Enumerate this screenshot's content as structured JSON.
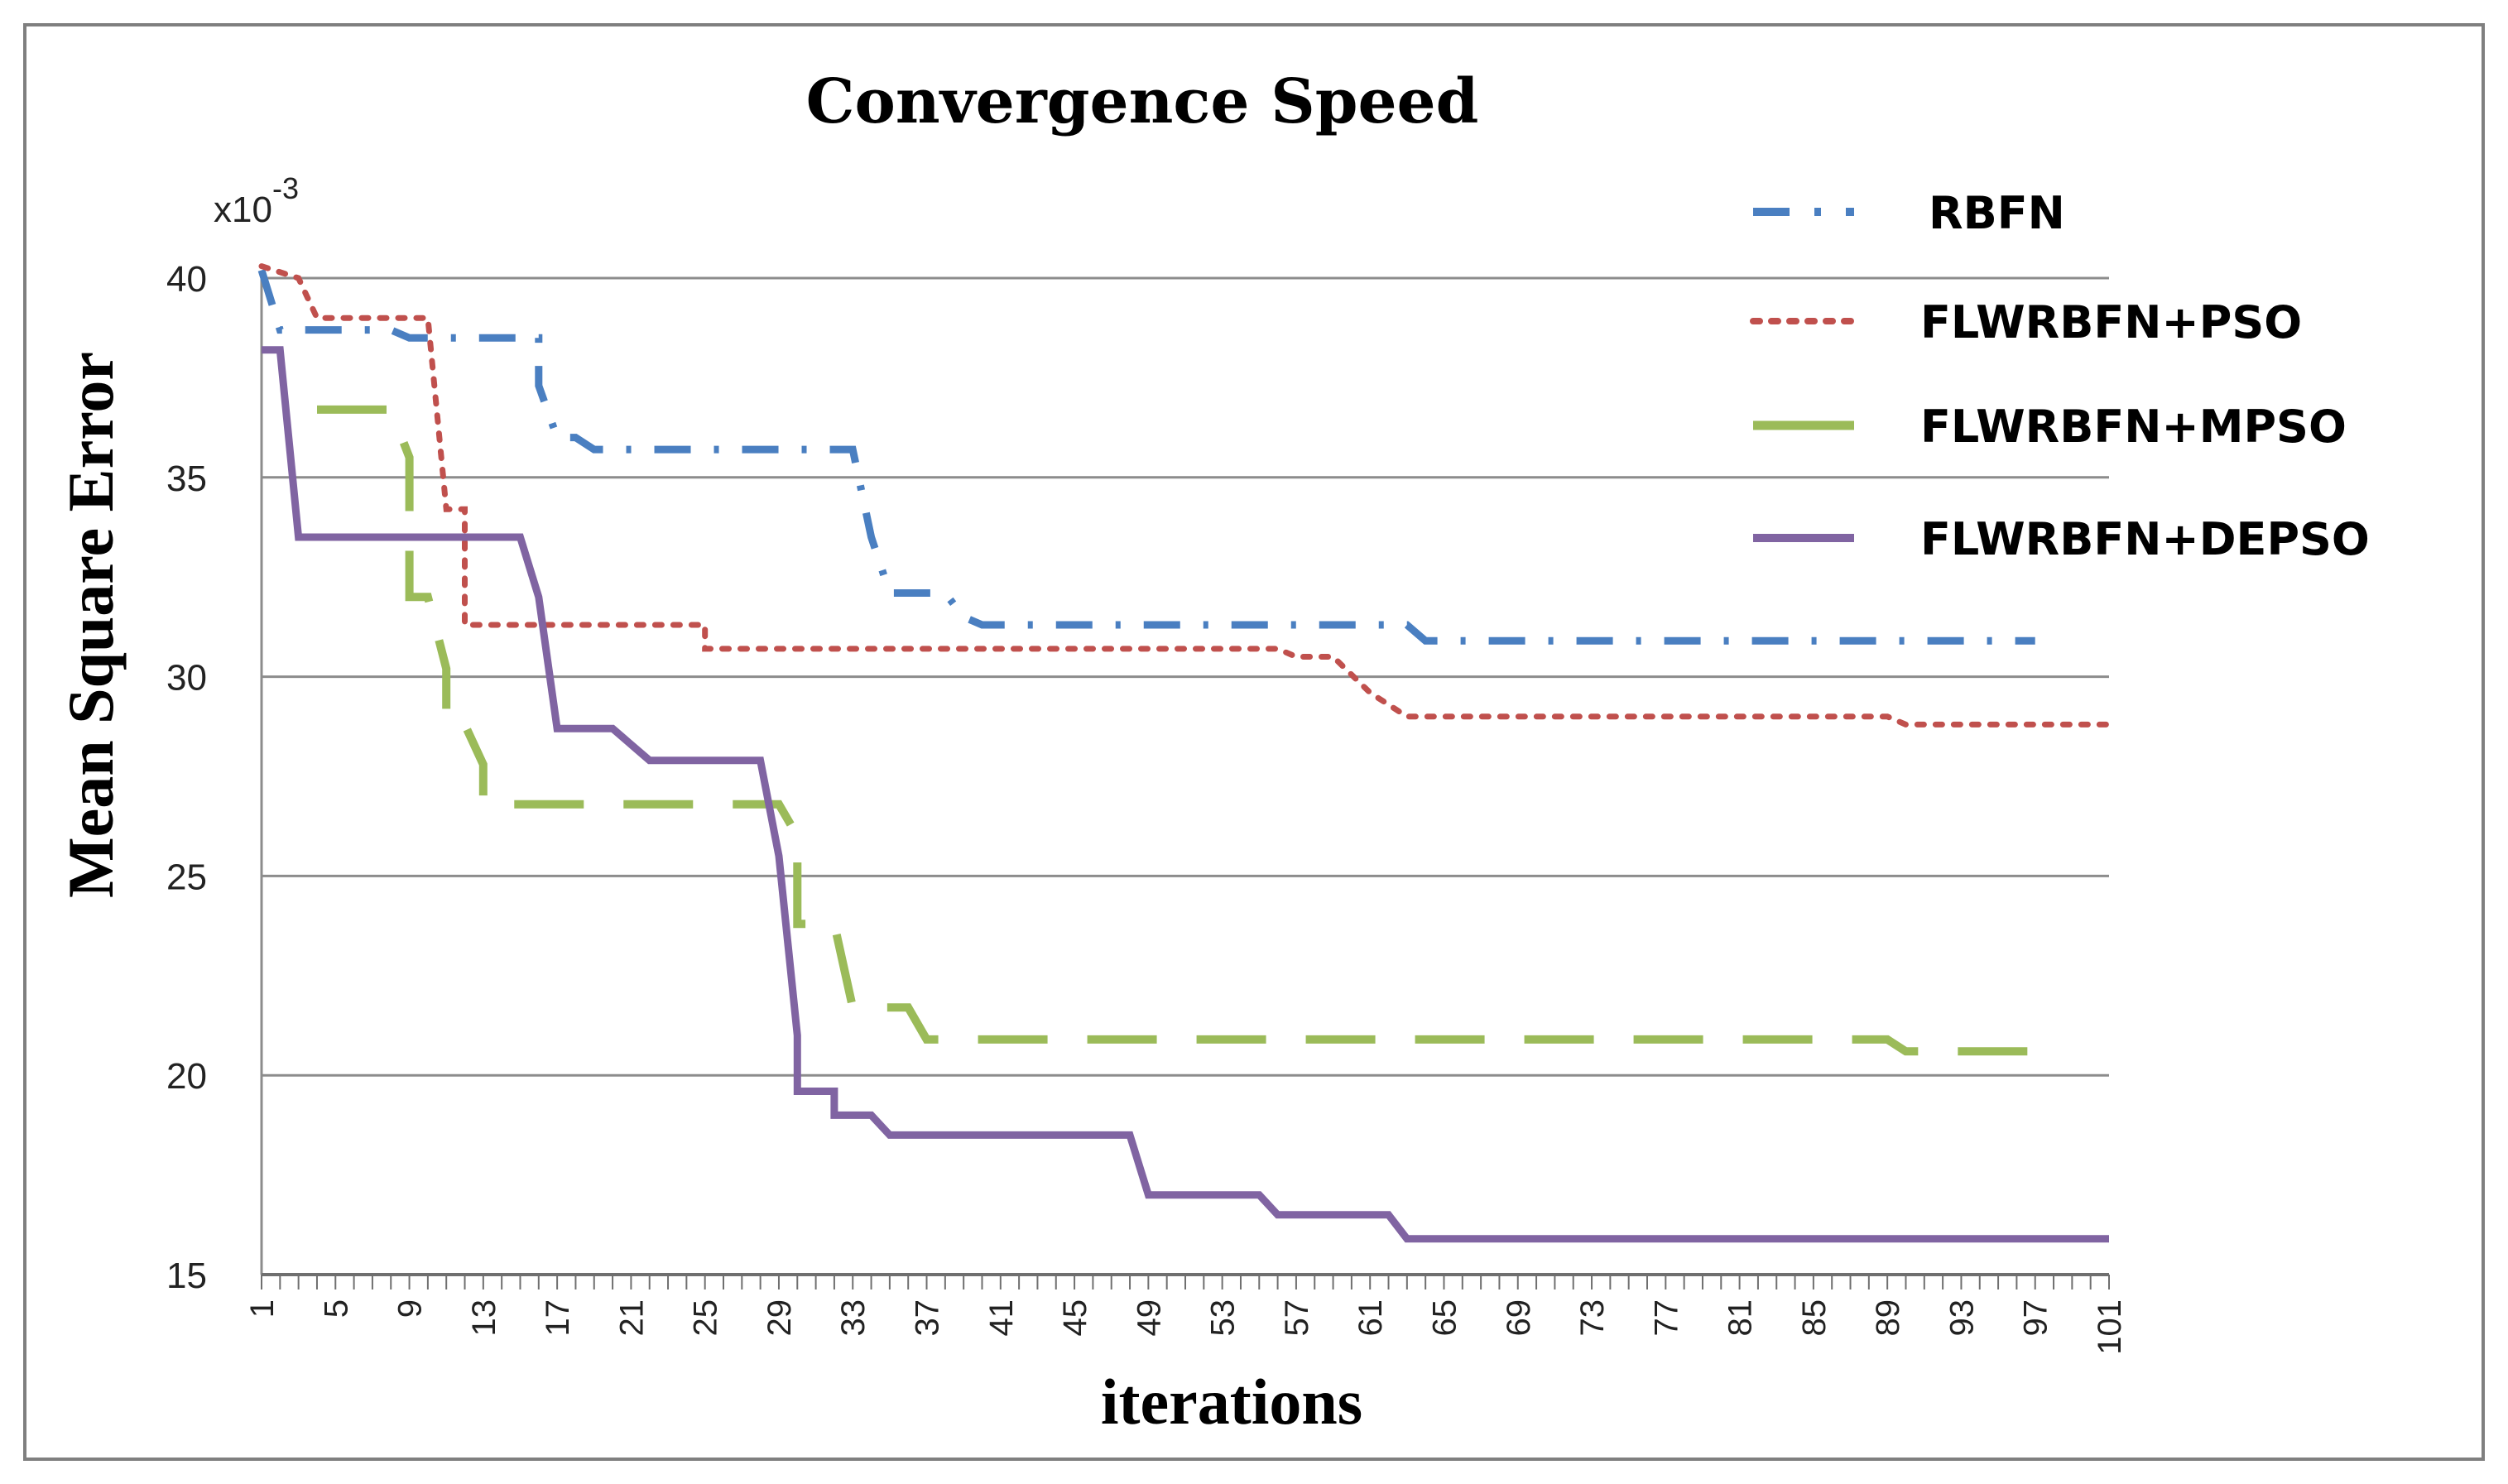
{
  "chart_data": {
    "type": "line",
    "title": "Convergence Speed",
    "xlabel": "iterations",
    "ylabel": "Mean Square Error",
    "y_scale_label": "x10",
    "y_scale_exponent": "-3",
    "ylim": [
      15,
      40
    ],
    "yticks": [
      "40",
      "35",
      "30",
      "25",
      "20",
      "15"
    ],
    "xlim": [
      1,
      101
    ],
    "xticks": [
      "1",
      "5",
      "9",
      "13",
      "17",
      "21",
      "25",
      "29",
      "33",
      "37",
      "41",
      "45",
      "49",
      "53",
      "57",
      "61",
      "65",
      "69",
      "73",
      "77",
      "81",
      "85",
      "89",
      "93",
      "97",
      "101"
    ],
    "grid": true,
    "legend_position": "top-right",
    "series": [
      {
        "name": "RBFN",
        "color": "#4a7fc1",
        "style": "dash-dot",
        "points": [
          [
            1,
            40.2
          ],
          [
            2,
            38.7
          ],
          [
            3,
            38.7
          ],
          [
            4,
            38.7
          ],
          [
            8,
            38.7
          ],
          [
            9,
            38.5
          ],
          [
            16,
            38.5
          ],
          [
            16,
            37.3
          ],
          [
            17,
            36.0
          ],
          [
            18,
            36.0
          ],
          [
            19,
            35.7
          ],
          [
            33,
            35.7
          ],
          [
            34,
            33.5
          ],
          [
            35,
            32.1
          ],
          [
            38,
            32.1
          ],
          [
            39,
            31.5
          ],
          [
            40,
            31.3
          ],
          [
            63,
            31.3
          ],
          [
            64,
            30.9
          ],
          [
            97,
            30.9
          ]
        ]
      },
      {
        "name": "FLWRBFN+PSO",
        "color": "#c0504d",
        "style": "dotted",
        "points": [
          [
            1,
            40.3
          ],
          [
            3,
            40.0
          ],
          [
            4,
            39.0
          ],
          [
            10,
            39.0
          ],
          [
            11,
            34.2
          ],
          [
            12,
            34.2
          ],
          [
            12,
            31.3
          ],
          [
            25,
            31.3
          ],
          [
            25,
            30.7
          ],
          [
            56,
            30.7
          ],
          [
            57,
            30.5
          ],
          [
            59,
            30.5
          ],
          [
            61,
            29.6
          ],
          [
            63,
            29.0
          ],
          [
            89,
            29.0
          ],
          [
            90,
            28.8
          ],
          [
            101,
            28.8
          ]
        ]
      },
      {
        "name": "FLWRBFN+MPSO",
        "color": "#9bbb59",
        "style": "long-dash",
        "points": [
          [
            4,
            36.7
          ],
          [
            8,
            36.7
          ],
          [
            9,
            35.5
          ],
          [
            9,
            32.0
          ],
          [
            10,
            32.0
          ],
          [
            11,
            30.2
          ],
          [
            11,
            28.8
          ],
          [
            12,
            28.8
          ],
          [
            13,
            27.8
          ],
          [
            13,
            26.8
          ],
          [
            29,
            26.8
          ],
          [
            30,
            26.0
          ],
          [
            30,
            23.8
          ],
          [
            32,
            23.8
          ],
          [
            33,
            21.7
          ],
          [
            36,
            21.7
          ],
          [
            37,
            20.9
          ],
          [
            89,
            20.9
          ],
          [
            90,
            20.6
          ],
          [
            97,
            20.6
          ]
        ]
      },
      {
        "name": "FLWRBFN+DEPSO",
        "color": "#8064a2",
        "style": "solid",
        "points": [
          [
            1,
            38.2
          ],
          [
            2,
            38.2
          ],
          [
            3,
            33.5
          ],
          [
            15,
            33.5
          ],
          [
            16,
            32.0
          ],
          [
            17,
            28.7
          ],
          [
            20,
            28.7
          ],
          [
            21,
            28.3
          ],
          [
            22,
            27.9
          ],
          [
            28,
            27.9
          ],
          [
            29,
            25.5
          ],
          [
            30,
            21.0
          ],
          [
            30,
            19.6
          ],
          [
            32,
            19.6
          ],
          [
            32,
            19.0
          ],
          [
            34,
            19.0
          ],
          [
            35,
            18.5
          ],
          [
            48,
            18.5
          ],
          [
            49,
            17.0
          ],
          [
            55,
            17.0
          ],
          [
            56,
            16.5
          ],
          [
            62,
            16.5
          ],
          [
            63,
            15.9
          ],
          [
            101,
            15.9
          ]
        ]
      }
    ]
  }
}
